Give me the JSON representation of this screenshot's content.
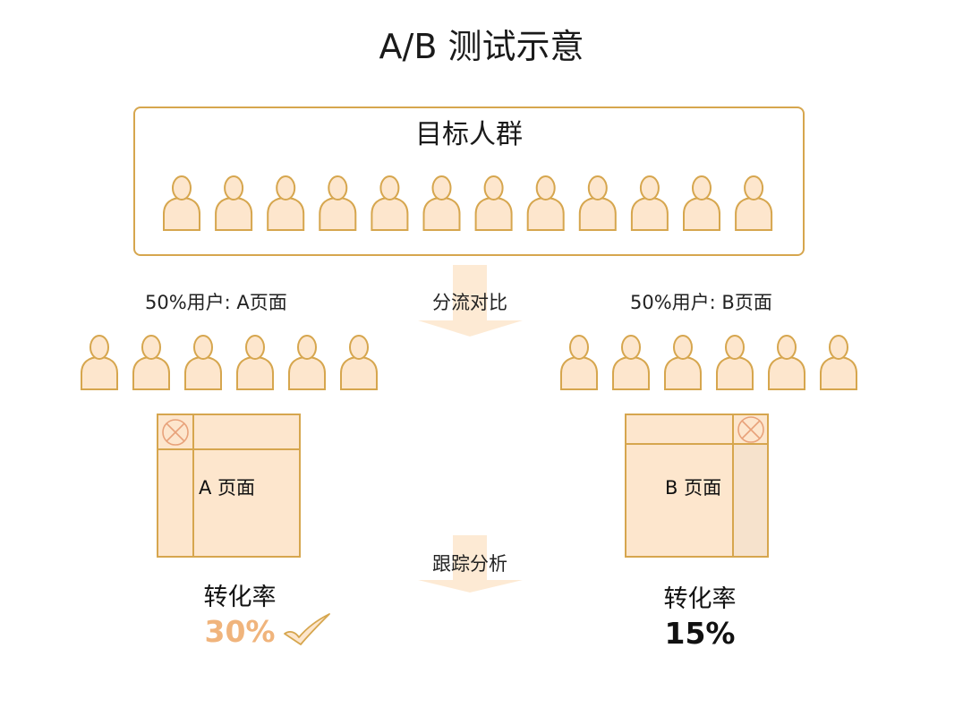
{
  "title": "A/B 测试示意",
  "target_group": {
    "label": "目标人群"
  },
  "split": {
    "label": "分流对比"
  },
  "track": {
    "label": "跟踪分析"
  },
  "group_a": {
    "label": "50%用户: A页面",
    "page_label": "A 页面",
    "conversion_label": "转化率",
    "conversion_rate": "30%",
    "winner_icon": "check-mark-icon"
  },
  "group_b": {
    "label": "50%用户: B页面",
    "page_label": "B 页面",
    "conversion_label": "转化率",
    "conversion_rate": "15%"
  },
  "colors": {
    "person_fill": "#fde6cd",
    "person_stroke": "#d6a64e",
    "arrow_fill": "#fde6cd",
    "highlight": "#f0b47c",
    "text": "#1a1a1a"
  }
}
